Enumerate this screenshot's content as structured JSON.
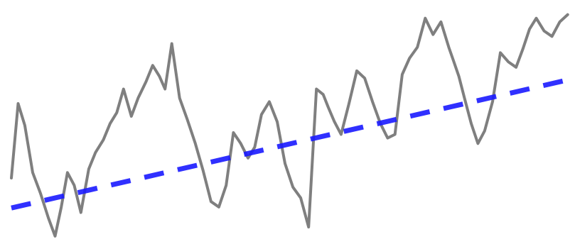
{
  "chart_data": {
    "type": "line",
    "title": "",
    "xlabel": "",
    "ylabel": "",
    "xlim": [
      0,
      100
    ],
    "ylim": [
      0,
      100
    ],
    "grid": false,
    "legend": "none",
    "series": [
      {
        "color": "#7f7f7f",
        "style": "solid",
        "x": [
          0,
          1.2,
          2.4,
          3.8,
          5.2,
          6.6,
          7.8,
          8.9,
          10.0,
          11.2,
          12.4,
          13.8,
          15.0,
          16.4,
          17.6,
          18.8,
          20.0,
          21.4,
          22.6,
          24.0,
          25.2,
          26.4,
          27.4,
          28.6,
          30.0,
          31.4,
          32.8,
          34.2,
          35.6,
          37.0,
          38.3,
          39.6,
          40.9,
          42.2,
          43.4,
          44.6,
          46.0,
          47.4,
          48.8,
          50.2,
          51.6,
          53.0,
          54.4,
          55.6,
          56.5,
          57.6,
          58.8,
          60.2,
          61.6,
          63.0,
          64.4,
          65.8,
          67.1,
          68.4,
          69.7,
          71.0,
          72.4,
          73.8,
          75.2,
          76.6,
          78.0,
          78.8,
          79.8,
          80.8,
          82.0,
          83.2,
          84.4,
          85.8,
          87.2,
          88.6,
          90.0,
          91.2,
          92.4,
          93.6,
          95.0,
          96.4,
          97.8,
          99.2
        ],
        "y": [
          27.2,
          60.0,
          50.4,
          29.6,
          20.4,
          9.6,
          1.6,
          14.4,
          29.6,
          24.0,
          12.0,
          31.2,
          38.4,
          44.0,
          51.2,
          56.0,
          66.4,
          54.4,
          62.4,
          69.6,
          76.8,
          72.0,
          66.4,
          86.4,
          62.4,
          52.8,
          42.4,
          30.4,
          16.8,
          14.4,
          24.0,
          47.2,
          42.4,
          36.0,
          40.8,
          55.2,
          60.8,
          52.0,
          33.6,
          23.2,
          18.4,
          5.6,
          66.4,
          64.0,
          58.4,
          52.0,
          46.4,
          60.0,
          74.4,
          71.2,
          60.8,
          51.2,
          44.8,
          46.4,
          72.8,
          80.0,
          84.8,
          97.6,
          90.4,
          96.0,
          84.8,
          79.2,
          72.0,
          62.4,
          51.2,
          42.4,
          48.0,
          60.8,
          82.4,
          78.4,
          76.0,
          84.0,
          92.8,
          97.6,
          92.0,
          89.6,
          96.0,
          99.2
        ]
      },
      {
        "color": "#1a1aff",
        "style": "dashed",
        "x": [
          0,
          99.2
        ],
        "y": [
          14.0,
          70.4
        ]
      }
    ]
  }
}
